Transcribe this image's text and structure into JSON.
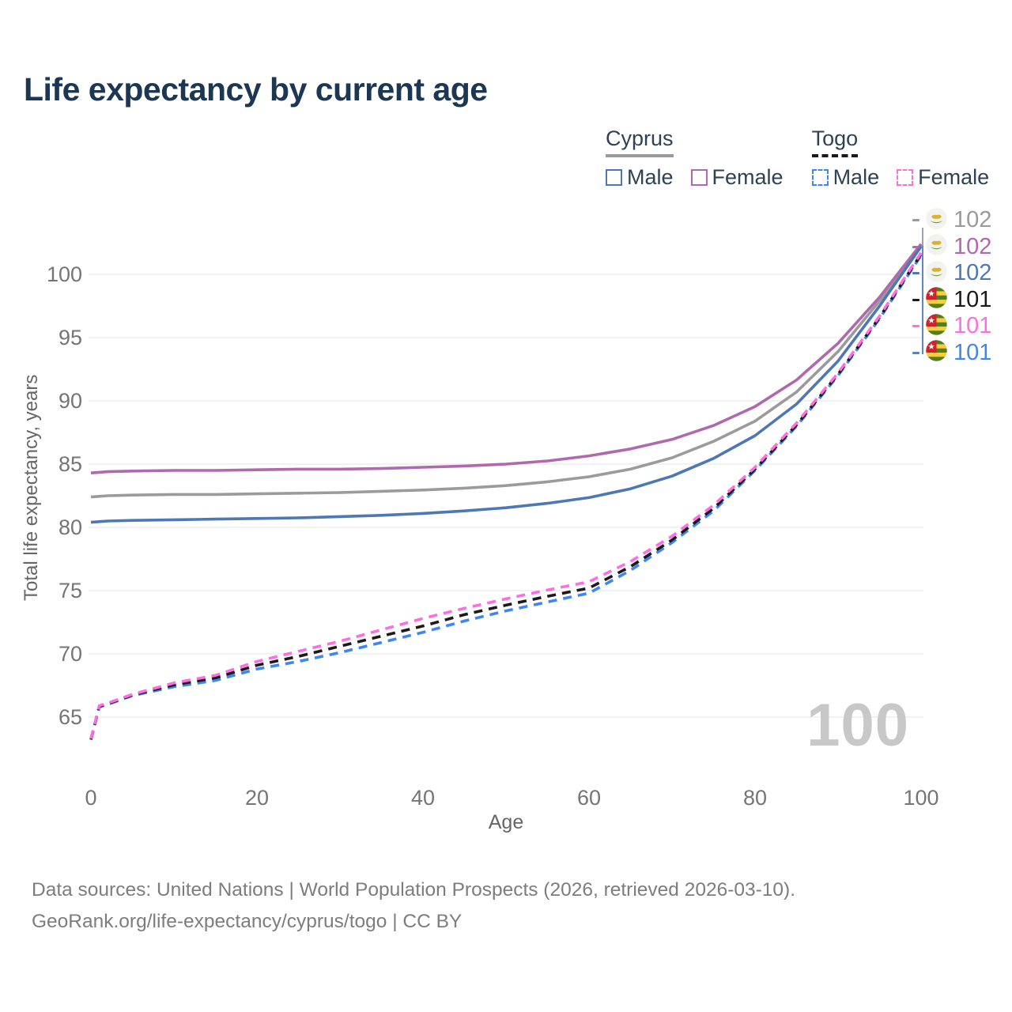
{
  "title": "Life expectancy by current age",
  "watermark": "100",
  "colors": {
    "cyprus_male": "#4d78b4",
    "cyprus_female": "#b069ad",
    "cyprus_both": "#9b9b9b",
    "togo_male": "#3f86f5",
    "togo_female": "#ff6ee0",
    "togo_both": "#1a1a1a",
    "title_text": "#1c3754",
    "axis_text": "#757575",
    "gridline": "#e9e9e9"
  },
  "legend": {
    "groups": [
      {
        "name": "Cyprus",
        "underline_style": "solid",
        "underline_color": "#9b9b9b",
        "items": [
          {
            "label": "Male",
            "color": "#4d78b4",
            "dash": false
          },
          {
            "label": "Female",
            "color": "#b069ad",
            "dash": false
          }
        ]
      },
      {
        "name": "Togo",
        "underline_style": "dashed",
        "underline_color": "#1a1a1a",
        "items": [
          {
            "label": "Male",
            "color": "#3f86f5",
            "dash": true
          },
          {
            "label": "Female",
            "color": "#ff6ee0",
            "dash": true
          }
        ]
      }
    ]
  },
  "end_labels": [
    {
      "value": "102",
      "flag": "cyprus",
      "color": "#9b9b9b"
    },
    {
      "value": "102",
      "flag": "cyprus",
      "color": "#b069ad"
    },
    {
      "value": "102",
      "flag": "cyprus",
      "color": "#4d78b4"
    },
    {
      "value": "101",
      "flag": "togo",
      "color": "#1a1a1a"
    },
    {
      "value": "101",
      "flag": "togo",
      "color": "#ff6ee0"
    },
    {
      "value": "101",
      "flag": "togo",
      "color": "#3f86f5"
    }
  ],
  "chart_data": {
    "type": "line",
    "title": "Life expectancy by current age",
    "xlabel": "Age",
    "ylabel": "Total life expectancy, years",
    "xlim": [
      0,
      100
    ],
    "ylim": [
      60,
      104
    ],
    "x_ticks": [
      0,
      20,
      40,
      60,
      80,
      100
    ],
    "y_ticks": [
      65,
      70,
      75,
      80,
      85,
      90,
      95,
      100
    ],
    "grid": "horizontal",
    "legend_position": "top-right",
    "x": [
      0,
      1,
      2,
      5,
      10,
      15,
      20,
      25,
      30,
      35,
      40,
      45,
      50,
      55,
      60,
      65,
      70,
      75,
      80,
      85,
      90,
      95,
      100
    ],
    "series": [
      {
        "name": "Cyprus Both sexes",
        "color": "#9b9b9b",
        "dash": false,
        "values": [
          82.4,
          82.45,
          82.5,
          82.55,
          82.6,
          82.6,
          82.65,
          82.7,
          82.75,
          82.85,
          82.95,
          83.1,
          83.3,
          83.6,
          84.0,
          84.6,
          85.5,
          86.8,
          88.4,
          90.7,
          93.9,
          97.9,
          102.3
        ]
      },
      {
        "name": "Cyprus Female",
        "color": "#b069ad",
        "dash": false,
        "values": [
          84.3,
          84.35,
          84.4,
          84.45,
          84.5,
          84.5,
          84.55,
          84.6,
          84.6,
          84.65,
          84.75,
          84.85,
          85.0,
          85.25,
          85.65,
          86.2,
          86.95,
          88.05,
          89.55,
          91.65,
          94.55,
          98.2,
          102.4
        ]
      },
      {
        "name": "Cyprus Male",
        "color": "#4d78b4",
        "dash": false,
        "values": [
          80.4,
          80.45,
          80.5,
          80.55,
          80.6,
          80.65,
          80.7,
          80.75,
          80.85,
          80.95,
          81.1,
          81.3,
          81.55,
          81.9,
          82.35,
          83.05,
          84.05,
          85.45,
          87.25,
          89.75,
          93.15,
          97.5,
          102.2
        ]
      },
      {
        "name": "Togo Male",
        "color": "#3f86f5",
        "dash": true,
        "values": [
          63.2,
          65.8,
          66.0,
          66.7,
          67.4,
          67.9,
          68.8,
          69.4,
          70.1,
          70.9,
          71.7,
          72.6,
          73.4,
          74.1,
          74.8,
          76.6,
          78.8,
          81.3,
          84.5,
          88.0,
          92.0,
          96.5,
          101.5
        ]
      },
      {
        "name": "Togo Both sexes",
        "color": "#1a1a1a",
        "dash": true,
        "values": [
          63.25,
          65.85,
          66.05,
          66.75,
          67.55,
          68.1,
          69.1,
          69.8,
          70.6,
          71.4,
          72.2,
          73.1,
          73.85,
          74.55,
          75.2,
          76.9,
          79.0,
          81.5,
          84.6,
          88.1,
          92.1,
          96.6,
          101.6
        ]
      },
      {
        "name": "Togo Female",
        "color": "#ff6ee0",
        "dash": true,
        "values": [
          63.3,
          65.9,
          66.1,
          66.8,
          67.7,
          68.3,
          69.4,
          70.2,
          71.0,
          71.9,
          72.8,
          73.6,
          74.35,
          75.05,
          75.7,
          77.3,
          79.3,
          81.75,
          84.75,
          88.25,
          92.2,
          96.7,
          101.7
        ]
      }
    ]
  },
  "footer": {
    "line1": "Data sources: United Nations | World Population Prospects (2026, retrieved 2026-03-10).",
    "line2": "GeoRank.org/life-expectancy/cyprus/togo | CC BY"
  }
}
